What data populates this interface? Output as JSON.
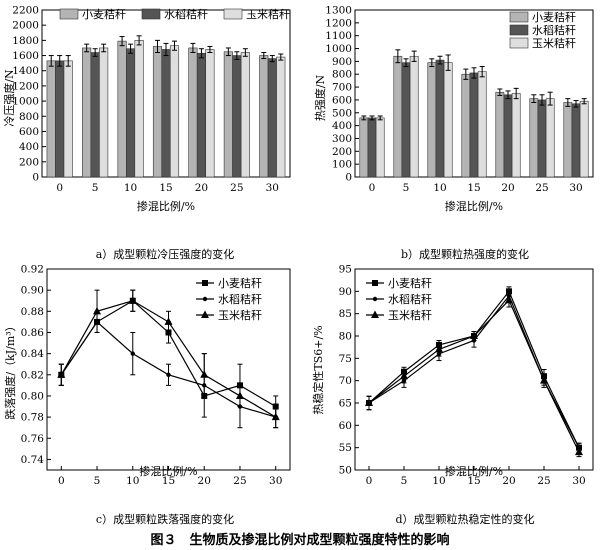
{
  "figure_caption": "图３　生物质及掺混比例对成型颗粒强度特性的影响",
  "chart_data": [
    {
      "id": "a",
      "type": "bar",
      "caption": "a）成型颗粒冷压强度的变化",
      "xlabel": "掺混比例/%",
      "ylabel": "冷压强度/N",
      "categories": [
        "0",
        "5",
        "10",
        "15",
        "20",
        "25",
        "30"
      ],
      "ylim": [
        0,
        2200
      ],
      "yticks": [
        0,
        200,
        400,
        600,
        800,
        1000,
        1200,
        1400,
        1600,
        1800,
        2000,
        2200
      ],
      "legend_position": "top",
      "series": [
        {
          "name": "小麦秸秆",
          "color": "#b4b4b4",
          "values": [
            1530,
            1700,
            1790,
            1720,
            1700,
            1650,
            1600
          ],
          "errors": [
            70,
            50,
            60,
            80,
            60,
            50,
            40
          ]
        },
        {
          "name": "水稻秸秆",
          "color": "#555555",
          "values": [
            1530,
            1640,
            1690,
            1680,
            1630,
            1600,
            1560
          ],
          "errors": [
            70,
            50,
            60,
            80,
            60,
            50,
            40
          ]
        },
        {
          "name": "玉米秸秆",
          "color": "#dedede",
          "values": [
            1530,
            1700,
            1800,
            1730,
            1680,
            1640,
            1580
          ],
          "errors": [
            70,
            50,
            60,
            60,
            40,
            50,
            40
          ]
        }
      ]
    },
    {
      "id": "b",
      "type": "bar",
      "caption": "b）成型颗粒热强度的变化",
      "xlabel": "掺混比例/%",
      "ylabel": "热强度/N",
      "categories": [
        "0",
        "5",
        "10",
        "15",
        "20",
        "25",
        "30"
      ],
      "ylim": [
        0,
        1300
      ],
      "yticks": [
        0,
        100,
        200,
        300,
        400,
        500,
        600,
        700,
        800,
        900,
        1000,
        1100,
        1200,
        1300
      ],
      "legend_position": "top-right",
      "series": [
        {
          "name": "小麦秸秆",
          "color": "#b4b4b4",
          "values": [
            460,
            940,
            890,
            800,
            660,
            610,
            580
          ],
          "errors": [
            15,
            50,
            30,
            40,
            25,
            30,
            30
          ]
        },
        {
          "name": "水稻秸秆",
          "color": "#555555",
          "values": [
            460,
            890,
            910,
            810,
            640,
            600,
            570
          ],
          "errors": [
            15,
            30,
            30,
            40,
            30,
            40,
            25
          ]
        },
        {
          "name": "玉米秸秆",
          "color": "#dedede",
          "values": [
            460,
            940,
            890,
            820,
            650,
            610,
            590
          ],
          "errors": [
            15,
            40,
            60,
            40,
            40,
            50,
            20
          ]
        }
      ]
    },
    {
      "id": "c",
      "type": "line",
      "caption": "c）成型颗粒跌落强度的变化",
      "xlabel": "掺混比例/%",
      "ylabel": "跌落强度/（kJ/m³）",
      "x": [
        0,
        5,
        10,
        15,
        20,
        25,
        30
      ],
      "xticks": [
        "0",
        "5",
        "10",
        "15",
        "20",
        "25",
        "30"
      ],
      "xlim": [
        -2,
        32
      ],
      "ylim": [
        0.73,
        0.92
      ],
      "yticks": [
        "0.74",
        "0.76",
        "0.78",
        "0.80",
        "0.82",
        "0.84",
        "0.86",
        "0.88",
        "0.90",
        "0.92"
      ],
      "legend_position": "top-right",
      "series": [
        {
          "name": "小麦秸秆",
          "marker": "square",
          "values": [
            0.82,
            0.87,
            0.89,
            0.86,
            0.8,
            0.81,
            0.79
          ],
          "errors": [
            0.01,
            0,
            0.01,
            0.01,
            0,
            0.02,
            0.01
          ]
        },
        {
          "name": "水稻秸秆",
          "marker": "dot",
          "values": [
            0.82,
            0.87,
            0.84,
            0.82,
            0.81,
            0.79,
            0.78
          ],
          "errors": [
            0.01,
            0.01,
            0.02,
            0.01,
            0.03,
            0.02,
            0.01
          ]
        },
        {
          "name": "玉米秸秆",
          "marker": "triangle",
          "values": [
            0.82,
            0.88,
            0.89,
            0.87,
            0.82,
            0.8,
            0.78
          ],
          "errors": [
            0.01,
            0.02,
            0.01,
            0.01,
            0.02,
            0.01,
            0.01
          ]
        }
      ]
    },
    {
      "id": "d",
      "type": "line",
      "caption": "d）成型颗粒热稳定性的变化",
      "xlabel": "掺混比例/%",
      "ylabel": "热稳定性TS6+/%",
      "x": [
        0,
        5,
        10,
        15,
        20,
        25,
        30
      ],
      "xticks": [
        "0",
        "5",
        "10",
        "15",
        "20",
        "25",
        "30"
      ],
      "xlim": [
        -2,
        32
      ],
      "ylim": [
        50,
        95
      ],
      "yticks": [
        "50",
        "55",
        "60",
        "65",
        "70",
        "75",
        "80",
        "85",
        "90",
        "95"
      ],
      "legend_position": "top-right",
      "series": [
        {
          "name": "小麦秸秆",
          "marker": "square",
          "values": [
            65,
            72,
            78,
            80,
            90,
            71,
            55
          ],
          "errors": [
            1.5,
            1,
            1,
            1,
            1,
            1.5,
            1
          ]
        },
        {
          "name": "水稻秸秆",
          "marker": "dot",
          "values": [
            65,
            70,
            76,
            79,
            89,
            70,
            55
          ],
          "errors": [
            1.5,
            1.5,
            1.5,
            1.5,
            1.5,
            1.5,
            1
          ]
        },
        {
          "name": "玉米秸秆",
          "marker": "triangle",
          "values": [
            65,
            71,
            77,
            80,
            88,
            70,
            54
          ],
          "errors": [
            1.5,
            1.5,
            1.5,
            1,
            1.5,
            1,
            1
          ]
        }
      ]
    }
  ]
}
